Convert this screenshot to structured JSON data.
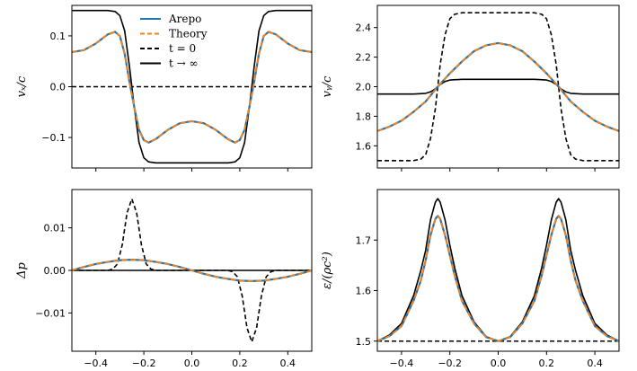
{
  "chart_data": [
    {
      "id": "vx",
      "type": "line",
      "ylabel": "v_x / c",
      "ylabel_text": "vₓ/c",
      "xlim": [
        -0.5,
        0.5
      ],
      "ylim": [
        -0.16,
        0.16
      ],
      "yticks": [
        0.1,
        0.0,
        -0.1
      ],
      "ytick_labels": [
        "0.1",
        "0.0",
        "-0.1"
      ],
      "xticks": [
        -0.4,
        -0.2,
        0.0,
        0.2,
        0.4
      ],
      "xtick_labels": [],
      "series": [
        {
          "name": "Arepo",
          "color": "#1f77b4",
          "style": "solid",
          "x": [
            -0.5,
            -0.45,
            -0.4,
            -0.35,
            -0.32,
            -0.3,
            -0.28,
            -0.26,
            -0.24,
            -0.22,
            -0.2,
            -0.18,
            -0.15,
            -0.1,
            -0.05,
            0.0,
            0.05,
            0.1,
            0.15,
            0.18,
            0.2,
            0.22,
            0.24,
            0.26,
            0.28,
            0.3,
            0.32,
            0.35,
            0.4,
            0.45,
            0.5
          ],
          "y": [
            0.068,
            0.072,
            0.085,
            0.103,
            0.108,
            0.1,
            0.065,
            0.01,
            -0.04,
            -0.085,
            -0.105,
            -0.11,
            -0.103,
            -0.085,
            -0.072,
            -0.068,
            -0.072,
            -0.085,
            -0.103,
            -0.11,
            -0.105,
            -0.085,
            -0.04,
            0.01,
            0.065,
            0.1,
            0.108,
            0.103,
            0.085,
            0.072,
            0.068
          ]
        },
        {
          "name": "Theory",
          "color": "#ff7f0e",
          "style": "dashed",
          "x": [
            -0.5,
            -0.45,
            -0.4,
            -0.35,
            -0.32,
            -0.3,
            -0.28,
            -0.26,
            -0.24,
            -0.22,
            -0.2,
            -0.18,
            -0.15,
            -0.1,
            -0.05,
            0.0,
            0.05,
            0.1,
            0.15,
            0.18,
            0.2,
            0.22,
            0.24,
            0.26,
            0.28,
            0.3,
            0.32,
            0.35,
            0.4,
            0.45,
            0.5
          ],
          "y": [
            0.068,
            0.072,
            0.085,
            0.103,
            0.108,
            0.1,
            0.065,
            0.01,
            -0.04,
            -0.085,
            -0.105,
            -0.11,
            -0.103,
            -0.085,
            -0.072,
            -0.068,
            -0.072,
            -0.085,
            -0.103,
            -0.11,
            -0.105,
            -0.085,
            -0.04,
            0.01,
            0.065,
            0.1,
            0.108,
            0.103,
            0.085,
            0.072,
            0.068
          ]
        },
        {
          "name": "t = 0",
          "color": "#000000",
          "style": "dashed",
          "x": [
            -0.5,
            0.5
          ],
          "y": [
            0.0,
            0.0
          ]
        },
        {
          "name": "t → ∞",
          "color": "#000000",
          "style": "solid",
          "x": [
            -0.5,
            -0.35,
            -0.32,
            -0.3,
            -0.28,
            -0.26,
            -0.25,
            -0.24,
            -0.22,
            -0.2,
            -0.18,
            -0.15,
            0.15,
            0.18,
            0.2,
            0.22,
            0.24,
            0.25,
            0.26,
            0.28,
            0.3,
            0.32,
            0.35,
            0.5
          ],
          "y": [
            0.15,
            0.15,
            0.148,
            0.14,
            0.11,
            0.04,
            0.0,
            -0.04,
            -0.11,
            -0.14,
            -0.148,
            -0.15,
            -0.15,
            -0.148,
            -0.14,
            -0.11,
            -0.04,
            0.0,
            0.04,
            0.11,
            0.14,
            0.148,
            0.15,
            0.15
          ]
        }
      ]
    },
    {
      "id": "vy",
      "type": "line",
      "ylabel": "v_y / c",
      "ylabel_text": "vᵧ/c",
      "xlim": [
        -0.5,
        0.5
      ],
      "ylim": [
        1.45,
        2.55
      ],
      "yticks": [
        2.4,
        2.2,
        2.0,
        1.8,
        1.6
      ],
      "ytick_labels": [
        "2.4",
        "2.2",
        "2.0",
        "1.8",
        "1.6"
      ],
      "xticks": [
        -0.4,
        -0.2,
        0.0,
        0.2,
        0.4
      ],
      "xtick_labels": [],
      "series": [
        {
          "name": "Arepo",
          "color": "#1f77b4",
          "style": "solid",
          "x": [
            -0.5,
            -0.45,
            -0.4,
            -0.35,
            -0.3,
            -0.25,
            -0.2,
            -0.15,
            -0.1,
            -0.05,
            0.0,
            0.05,
            0.1,
            0.15,
            0.2,
            0.25,
            0.3,
            0.35,
            0.4,
            0.45,
            0.5
          ],
          "y": [
            1.7,
            1.73,
            1.77,
            1.83,
            1.9,
            2.0,
            2.09,
            2.17,
            2.24,
            2.28,
            2.295,
            2.28,
            2.24,
            2.17,
            2.09,
            2.0,
            1.9,
            1.83,
            1.77,
            1.73,
            1.7
          ]
        },
        {
          "name": "Theory",
          "color": "#ff7f0e",
          "style": "dashed",
          "x": [
            -0.5,
            -0.45,
            -0.4,
            -0.35,
            -0.3,
            -0.25,
            -0.2,
            -0.15,
            -0.1,
            -0.05,
            0.0,
            0.05,
            0.1,
            0.15,
            0.2,
            0.25,
            0.3,
            0.35,
            0.4,
            0.45,
            0.5
          ],
          "y": [
            1.7,
            1.73,
            1.77,
            1.83,
            1.9,
            2.0,
            2.09,
            2.17,
            2.24,
            2.28,
            2.295,
            2.28,
            2.24,
            2.17,
            2.09,
            2.0,
            1.9,
            1.83,
            1.77,
            1.73,
            1.7
          ]
        },
        {
          "name": "t = 0",
          "color": "#000000",
          "style": "dashed",
          "x": [
            -0.5,
            -0.35,
            -0.32,
            -0.3,
            -0.28,
            -0.26,
            -0.25,
            -0.24,
            -0.22,
            -0.2,
            -0.18,
            -0.15,
            0.15,
            0.18,
            0.2,
            0.22,
            0.24,
            0.25,
            0.26,
            0.28,
            0.3,
            0.32,
            0.35,
            0.5
          ],
          "y": [
            1.5,
            1.5,
            1.51,
            1.54,
            1.65,
            1.85,
            2.0,
            2.15,
            2.35,
            2.46,
            2.49,
            2.5,
            2.5,
            2.49,
            2.46,
            2.35,
            2.15,
            2.0,
            1.85,
            1.65,
            1.54,
            1.51,
            1.5,
            1.5
          ]
        },
        {
          "name": "t → ∞",
          "color": "#000000",
          "style": "solid",
          "x": [
            -0.5,
            -0.35,
            -0.3,
            -0.28,
            -0.26,
            -0.25,
            -0.24,
            -0.22,
            -0.2,
            -0.15,
            0.15,
            0.2,
            0.22,
            0.24,
            0.25,
            0.26,
            0.28,
            0.3,
            0.35,
            0.5
          ],
          "y": [
            1.95,
            1.95,
            1.955,
            1.965,
            1.985,
            2.0,
            2.015,
            2.035,
            2.045,
            2.05,
            2.05,
            2.045,
            2.035,
            2.015,
            2.0,
            1.985,
            1.965,
            1.955,
            1.95,
            1.95
          ]
        }
      ]
    },
    {
      "id": "dp",
      "type": "line",
      "ylabel": "Δp",
      "ylabel_text": "Δp",
      "xlim": [
        -0.5,
        0.5
      ],
      "ylim": [
        -0.019,
        0.019
      ],
      "yticks": [
        0.01,
        0.0,
        -0.01
      ],
      "ytick_labels": [
        "0.01",
        "0.00",
        "-0.01"
      ],
      "xticks": [
        -0.4,
        -0.2,
        0.0,
        0.2,
        0.4
      ],
      "xtick_labels": [
        "−0.4",
        "−0.2",
        "0.0",
        "0.2",
        "0.4"
      ],
      "series": [
        {
          "name": "Arepo",
          "color": "#1f77b4",
          "style": "solid",
          "x": [
            -0.5,
            -0.45,
            -0.4,
            -0.35,
            -0.3,
            -0.25,
            -0.2,
            -0.15,
            -0.1,
            -0.05,
            0.0,
            0.05,
            0.1,
            0.15,
            0.2,
            0.25,
            0.3,
            0.35,
            0.4,
            0.45,
            0.5
          ],
          "y": [
            0.0,
            0.0008,
            0.0015,
            0.002,
            0.0024,
            0.0025,
            0.0024,
            0.002,
            0.0015,
            0.0008,
            0.0,
            -0.0008,
            -0.0015,
            -0.002,
            -0.0024,
            -0.0025,
            -0.0024,
            -0.002,
            -0.0015,
            -0.0008,
            0.0
          ]
        },
        {
          "name": "Theory",
          "color": "#ff7f0e",
          "style": "dashed",
          "x": [
            -0.5,
            -0.45,
            -0.4,
            -0.35,
            -0.3,
            -0.25,
            -0.2,
            -0.15,
            -0.1,
            -0.05,
            0.0,
            0.05,
            0.1,
            0.15,
            0.2,
            0.25,
            0.3,
            0.35,
            0.4,
            0.45,
            0.5
          ],
          "y": [
            0.0,
            0.0008,
            0.0015,
            0.002,
            0.0024,
            0.0025,
            0.0024,
            0.002,
            0.0015,
            0.0008,
            0.0,
            -0.0008,
            -0.0015,
            -0.002,
            -0.0024,
            -0.0025,
            -0.0024,
            -0.002,
            -0.0015,
            -0.0008,
            0.0
          ]
        },
        {
          "name": "t = 0",
          "color": "#000000",
          "style": "dashed",
          "x": [
            -0.5,
            -0.35,
            -0.33,
            -0.31,
            -0.29,
            -0.27,
            -0.25,
            -0.23,
            -0.21,
            -0.19,
            -0.17,
            -0.15,
            0.15,
            0.17,
            0.19,
            0.21,
            0.23,
            0.25,
            0.27,
            0.29,
            0.31,
            0.33,
            0.35,
            0.5
          ],
          "y": [
            0.0,
            0.0,
            0.0003,
            0.0015,
            0.006,
            0.0135,
            0.0168,
            0.0135,
            0.006,
            0.0015,
            0.0003,
            0.0,
            0.0,
            -0.0003,
            -0.0015,
            -0.006,
            -0.0135,
            -0.0168,
            -0.0135,
            -0.006,
            -0.0015,
            -0.0003,
            0.0,
            0.0
          ]
        },
        {
          "name": "t → ∞",
          "color": "#000000",
          "style": "solid",
          "x": [
            -0.5,
            0.5
          ],
          "y": [
            0.0,
            0.0
          ]
        }
      ]
    },
    {
      "id": "eps",
      "type": "line",
      "ylabel": "ε / (ρc²)",
      "ylabel_text": "ε/(ρc²)",
      "xlim": [
        -0.5,
        0.5
      ],
      "ylim": [
        1.48,
        1.8
      ],
      "yticks": [
        1.7,
        1.6,
        1.5
      ],
      "ytick_labels": [
        "1.7",
        "1.6",
        "1.5"
      ],
      "xticks": [
        -0.4,
        -0.2,
        0.0,
        0.2,
        0.4
      ],
      "xtick_labels": [
        "−0.4",
        "−0.2",
        "0.0",
        "0.2",
        "0.4"
      ],
      "series": [
        {
          "name": "Arepo",
          "color": "#1f77b4",
          "style": "solid",
          "x": [
            -0.5,
            -0.45,
            -0.4,
            -0.35,
            -0.32,
            -0.3,
            -0.28,
            -0.26,
            -0.25,
            -0.24,
            -0.22,
            -0.2,
            -0.18,
            -0.15,
            -0.1,
            -0.05,
            0.0,
            0.05,
            0.1,
            0.15,
            0.18,
            0.2,
            0.22,
            0.24,
            0.25,
            0.26,
            0.28,
            0.3,
            0.32,
            0.35,
            0.4,
            0.45,
            0.5
          ],
          "y": [
            1.5,
            1.51,
            1.53,
            1.58,
            1.62,
            1.66,
            1.71,
            1.742,
            1.748,
            1.742,
            1.71,
            1.67,
            1.63,
            1.58,
            1.535,
            1.508,
            1.5,
            1.508,
            1.535,
            1.58,
            1.63,
            1.67,
            1.71,
            1.742,
            1.748,
            1.742,
            1.71,
            1.66,
            1.62,
            1.58,
            1.53,
            1.51,
            1.5
          ]
        },
        {
          "name": "Theory",
          "color": "#ff7f0e",
          "style": "dashed",
          "x": [
            -0.5,
            -0.45,
            -0.4,
            -0.35,
            -0.32,
            -0.3,
            -0.28,
            -0.26,
            -0.25,
            -0.24,
            -0.22,
            -0.2,
            -0.18,
            -0.15,
            -0.1,
            -0.05,
            0.0,
            0.05,
            0.1,
            0.15,
            0.18,
            0.2,
            0.22,
            0.24,
            0.25,
            0.26,
            0.28,
            0.3,
            0.32,
            0.35,
            0.4,
            0.45,
            0.5
          ],
          "y": [
            1.5,
            1.51,
            1.53,
            1.58,
            1.62,
            1.66,
            1.71,
            1.742,
            1.748,
            1.742,
            1.71,
            1.67,
            1.63,
            1.58,
            1.535,
            1.508,
            1.5,
            1.508,
            1.535,
            1.58,
            1.63,
            1.67,
            1.71,
            1.742,
            1.748,
            1.742,
            1.71,
            1.66,
            1.62,
            1.58,
            1.53,
            1.51,
            1.5
          ]
        },
        {
          "name": "t = 0",
          "color": "#000000",
          "style": "dashed",
          "x": [
            -0.5,
            0.5
          ],
          "y": [
            1.5,
            1.5
          ]
        },
        {
          "name": "t → ∞",
          "color": "#000000",
          "style": "solid",
          "x": [
            -0.5,
            -0.45,
            -0.4,
            -0.35,
            -0.32,
            -0.3,
            -0.28,
            -0.26,
            -0.25,
            -0.24,
            -0.22,
            -0.2,
            -0.18,
            -0.15,
            -0.1,
            -0.05,
            0.0,
            0.05,
            0.1,
            0.15,
            0.18,
            0.2,
            0.22,
            0.24,
            0.25,
            0.26,
            0.28,
            0.3,
            0.32,
            0.35,
            0.4,
            0.45,
            0.5
          ],
          "y": [
            1.5,
            1.512,
            1.535,
            1.59,
            1.64,
            1.68,
            1.74,
            1.775,
            1.782,
            1.775,
            1.74,
            1.69,
            1.645,
            1.59,
            1.538,
            1.509,
            1.5,
            1.509,
            1.538,
            1.59,
            1.645,
            1.69,
            1.74,
            1.775,
            1.782,
            1.775,
            1.74,
            1.68,
            1.64,
            1.59,
            1.535,
            1.512,
            1.5
          ]
        }
      ]
    }
  ],
  "legend": {
    "placement": "top-center of first panel",
    "entries": [
      {
        "label": "Arepo",
        "color": "#1f77b4",
        "style": "solid"
      },
      {
        "label": "Theory",
        "color": "#ff7f0e",
        "style": "dashed"
      },
      {
        "label": "t = 0",
        "color": "#000000",
        "style": "dashed"
      },
      {
        "label": "t → ∞",
        "color": "#000000",
        "style": "solid"
      }
    ]
  }
}
